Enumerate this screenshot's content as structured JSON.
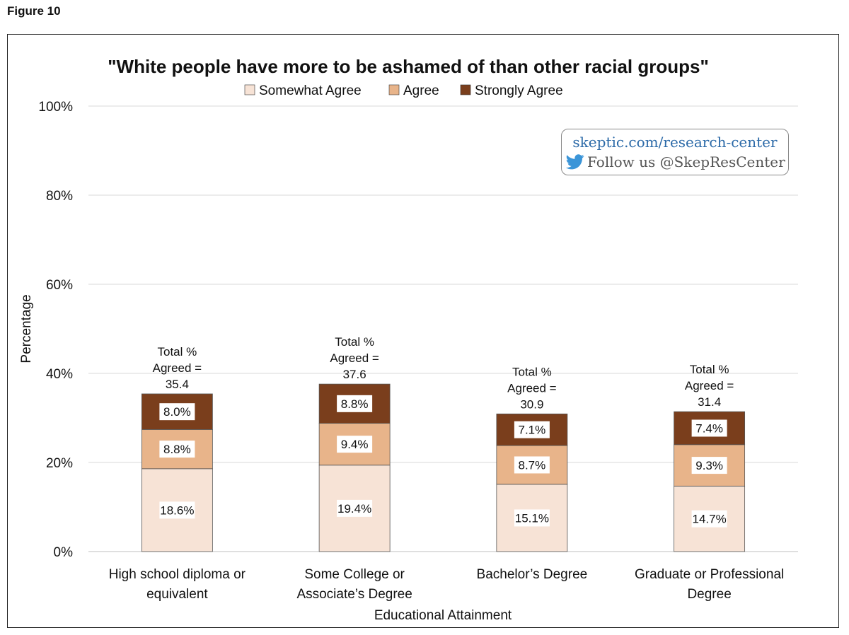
{
  "figure_label": "Figure 10",
  "badge": {
    "site": "skeptic.com/research-center",
    "follow": "Follow us @SkepResCenter",
    "icon": "twitter-bird-icon"
  },
  "colors": {
    "somewhat": "#f7e3d6",
    "agree": "#e8b48a",
    "strongly": "#7a3e1c",
    "grid": "#d9d9d9"
  },
  "chart_data": {
    "type": "bar",
    "stacked": true,
    "title": "\"White people have more to be ashamed of than other racial groups\"",
    "xlabel": "Educational Attainment",
    "ylabel": "Percentage",
    "ylim": [
      0,
      100
    ],
    "yticks": [
      "0%",
      "20%",
      "40%",
      "60%",
      "80%",
      "100%"
    ],
    "ytick_values": [
      0,
      20,
      40,
      60,
      80,
      100
    ],
    "legend_position": "top-center",
    "categories": [
      [
        "High school diploma or",
        "equivalent"
      ],
      [
        "Some College or",
        "Associate’s Degree"
      ],
      [
        "Bachelor’s Degree"
      ],
      [
        "Graduate or Professional",
        "Degree"
      ]
    ],
    "series": [
      {
        "name": "Somewhat Agree",
        "values": [
          18.6,
          19.4,
          15.1,
          14.7
        ],
        "labels": [
          "18.6%",
          "19.4%",
          "15.1%",
          "14.7%"
        ]
      },
      {
        "name": "Agree",
        "values": [
          8.8,
          9.4,
          8.7,
          9.3
        ],
        "labels": [
          "8.8%",
          "9.4%",
          "8.7%",
          "9.3%"
        ]
      },
      {
        "name": "Strongly Agree",
        "values": [
          8.0,
          8.8,
          7.1,
          7.4
        ],
        "labels": [
          "8.0%",
          "8.8%",
          "7.1%",
          "7.4%"
        ]
      }
    ],
    "totals": [
      35.4,
      37.6,
      30.9,
      31.4
    ],
    "total_label_lines": [
      "Total %",
      "Agreed ="
    ],
    "total_labels": [
      "35.4",
      "37.6",
      "30.9",
      "31.4"
    ]
  }
}
